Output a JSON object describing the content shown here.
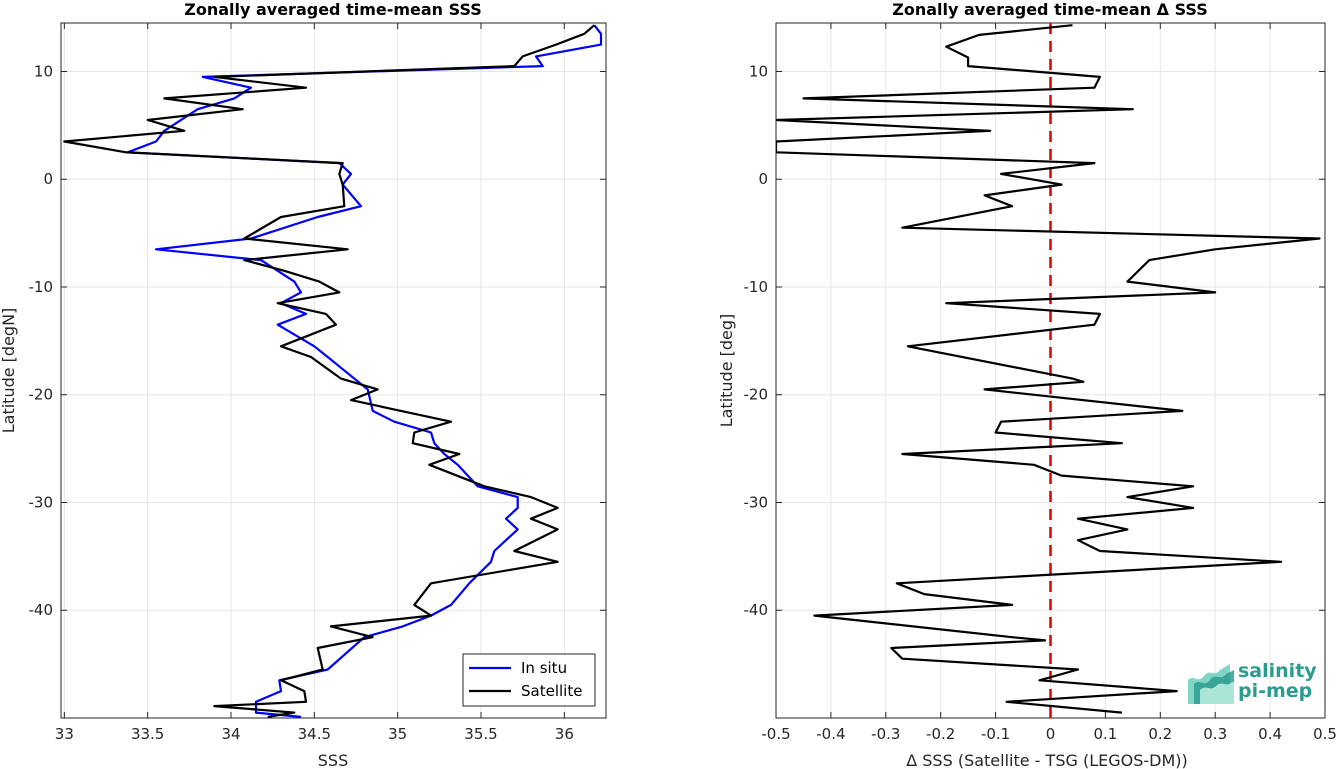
{
  "chart_data": [
    {
      "type": "line",
      "title": "Zonally averaged time-mean SSS",
      "xlabel": "SSS",
      "ylabel": "Latitude [degN]",
      "xlim": [
        32.98,
        36.25
      ],
      "ylim": [
        -50,
        14.5
      ],
      "xticks": [
        33,
        33.5,
        34,
        34.5,
        35,
        35.5,
        36
      ],
      "xtick_labels": [
        "33",
        "33.5",
        "34",
        "34.5",
        "35",
        "35.5",
        "36"
      ],
      "yticks": [
        -40,
        -30,
        -20,
        -10,
        0,
        10
      ],
      "ytick_labels": [
        "-40",
        "-30",
        "-20",
        "-10",
        "0",
        "10"
      ],
      "grid": true,
      "legend_position": "bottom-right",
      "series": [
        {
          "name": "In situ",
          "color": "#0000ff",
          "points": [
            [
              36.18,
              14.3
            ],
            [
              36.22,
              13.5
            ],
            [
              36.22,
              12.5
            ],
            [
              35.83,
              11.4
            ],
            [
              35.87,
              10.5
            ],
            [
              33.83,
              9.5
            ],
            [
              34.12,
              8.5
            ],
            [
              34.02,
              7.5
            ],
            [
              33.8,
              6.5
            ],
            [
              33.6,
              4.5
            ],
            [
              33.55,
              3.5
            ],
            [
              33.38,
              2.5
            ],
            [
              34.65,
              1.5
            ],
            [
              34.72,
              0.5
            ],
            [
              34.67,
              -0.5
            ],
            [
              34.78,
              -2.5
            ],
            [
              34.52,
              -3.5
            ],
            [
              34.12,
              -5.5
            ],
            [
              33.55,
              -6.5
            ],
            [
              34.18,
              -7.5
            ],
            [
              34.38,
              -9.5
            ],
            [
              34.42,
              -10.5
            ],
            [
              34.3,
              -11.5
            ],
            [
              34.45,
              -12.5
            ],
            [
              34.28,
              -13.5
            ],
            [
              34.5,
              -15.5
            ],
            [
              34.58,
              -16.5
            ],
            [
              34.66,
              -17.5
            ],
            [
              34.82,
              -19.5
            ],
            [
              34.85,
              -21.5
            ],
            [
              34.98,
              -22.5
            ],
            [
              35.2,
              -23.5
            ],
            [
              35.22,
              -24.5
            ],
            [
              35.28,
              -25.5
            ],
            [
              35.36,
              -26.5
            ],
            [
              35.48,
              -28.5
            ],
            [
              35.72,
              -29.5
            ],
            [
              35.72,
              -30.5
            ],
            [
              35.65,
              -31.5
            ],
            [
              35.72,
              -32.5
            ],
            [
              35.58,
              -34.5
            ],
            [
              35.56,
              -35.5
            ],
            [
              35.43,
              -37.5
            ],
            [
              35.32,
              -39.5
            ],
            [
              35.2,
              -40.5
            ],
            [
              35.03,
              -41.5
            ],
            [
              34.8,
              -42.5
            ],
            [
              34.58,
              -45.5
            ],
            [
              34.29,
              -46.5
            ],
            [
              34.3,
              -47.5
            ],
            [
              34.15,
              -48.5
            ],
            [
              34.15,
              -49.5
            ],
            [
              34.42,
              -49.9
            ]
          ]
        },
        {
          "name": "Satellite",
          "color": "#000000",
          "points": [
            [
              36.18,
              14.3
            ],
            [
              36.12,
              13.5
            ],
            [
              35.95,
              12.5
            ],
            [
              35.75,
              11.4
            ],
            [
              35.7,
              10.5
            ],
            [
              33.9,
              9.5
            ],
            [
              34.45,
              8.5
            ],
            [
              33.6,
              7.5
            ],
            [
              34.07,
              6.5
            ],
            [
              33.5,
              5.5
            ],
            [
              33.72,
              4.5
            ],
            [
              33.0,
              3.5
            ],
            [
              33.37,
              2.5
            ],
            [
              34.67,
              1.5
            ],
            [
              34.65,
              0.5
            ],
            [
              34.67,
              -0.5
            ],
            [
              34.68,
              -2.5
            ],
            [
              34.3,
              -3.5
            ],
            [
              34.08,
              -5.5
            ],
            [
              34.7,
              -6.5
            ],
            [
              34.08,
              -7.5
            ],
            [
              34.32,
              -8.5
            ],
            [
              34.53,
              -9.5
            ],
            [
              34.65,
              -10.5
            ],
            [
              34.28,
              -11.5
            ],
            [
              34.57,
              -12.5
            ],
            [
              34.63,
              -13.5
            ],
            [
              34.3,
              -15.5
            ],
            [
              34.48,
              -16.5
            ],
            [
              34.66,
              -18.5
            ],
            [
              34.88,
              -19.5
            ],
            [
              34.72,
              -20.5
            ],
            [
              35.32,
              -22.5
            ],
            [
              35.1,
              -23.5
            ],
            [
              35.09,
              -24.5
            ],
            [
              35.37,
              -25.5
            ],
            [
              35.19,
              -26.5
            ],
            [
              35.52,
              -28.5
            ],
            [
              35.8,
              -29.5
            ],
            [
              35.96,
              -30.5
            ],
            [
              35.8,
              -31.5
            ],
            [
              35.96,
              -32.5
            ],
            [
              35.7,
              -34.5
            ],
            [
              35.96,
              -35.5
            ],
            [
              35.2,
              -37.5
            ],
            [
              35.1,
              -39.5
            ],
            [
              35.2,
              -40.5
            ],
            [
              34.6,
              -41.5
            ],
            [
              34.85,
              -42.5
            ],
            [
              34.52,
              -43.5
            ],
            [
              34.55,
              -45.5
            ],
            [
              34.3,
              -46.5
            ],
            [
              34.44,
              -47.5
            ],
            [
              34.45,
              -48.5
            ],
            [
              33.9,
              -48.9
            ],
            [
              34.38,
              -49.5
            ],
            [
              34.22,
              -49.9
            ]
          ]
        }
      ]
    },
    {
      "type": "line",
      "title": "Zonally averaged time-mean Δ SSS",
      "xlabel": "Δ SSS (Satellite - TSG (LEGOS-DM))",
      "ylabel": "Latitude [deg]",
      "xlim": [
        -0.5,
        0.5
      ],
      "ylim": [
        -50,
        14.5
      ],
      "xticks": [
        -0.5,
        -0.4,
        -0.3,
        -0.2,
        -0.1,
        0,
        0.1,
        0.2,
        0.3,
        0.4,
        0.5
      ],
      "xtick_labels": [
        "-0.5",
        "-0.4",
        "-0.3",
        "-0.2",
        "-0.1",
        "0",
        "0.1",
        "0.2",
        "0.3",
        "0.4",
        "0.5"
      ],
      "yticks": [
        -40,
        -30,
        -20,
        -10,
        0,
        10
      ],
      "ytick_labels": [
        "-40",
        "-30",
        "-20",
        "-10",
        "0",
        "10"
      ],
      "grid": true,
      "reference_line": {
        "x": 0,
        "color": "#e00000",
        "style": "dashed"
      },
      "series": [
        {
          "color": "#000000",
          "points": [
            [
              0.04,
              14.3
            ],
            [
              -0.13,
              13.4
            ],
            [
              -0.19,
              12.3
            ],
            [
              -0.15,
              11.3
            ],
            [
              -0.15,
              10.5
            ],
            [
              0.09,
              9.5
            ],
            [
              0.08,
              8.5
            ],
            [
              -0.45,
              7.5
            ],
            [
              0.15,
              6.5
            ],
            [
              -0.5,
              5.5
            ],
            [
              -0.11,
              4.5
            ],
            [
              -0.5,
              3.5
            ],
            [
              -0.5,
              2.5
            ],
            [
              0.08,
              1.5
            ],
            [
              -0.09,
              0.5
            ],
            [
              0.02,
              -0.5
            ],
            [
              -0.12,
              -1.5
            ],
            [
              -0.07,
              -2.5
            ],
            [
              -0.27,
              -4.5
            ],
            [
              0.49,
              -5.5
            ],
            [
              0.3,
              -6.5
            ],
            [
              0.18,
              -7.5
            ],
            [
              0.14,
              -9.5
            ],
            [
              0.3,
              -10.5
            ],
            [
              -0.19,
              -11.5
            ],
            [
              0.09,
              -12.5
            ],
            [
              0.08,
              -13.5
            ],
            [
              -0.26,
              -15.5
            ],
            [
              0.04,
              -18.5
            ],
            [
              0.06,
              -18.8
            ],
            [
              -0.12,
              -19.5
            ],
            [
              0.24,
              -21.5
            ],
            [
              -0.09,
              -22.5
            ],
            [
              -0.1,
              -23.5
            ],
            [
              0.13,
              -24.5
            ],
            [
              -0.27,
              -25.5
            ],
            [
              -0.03,
              -26.5
            ],
            [
              0.02,
              -27.5
            ],
            [
              0.26,
              -28.5
            ],
            [
              0.14,
              -29.5
            ],
            [
              0.26,
              -30.5
            ],
            [
              0.05,
              -31.5
            ],
            [
              0.14,
              -32.5
            ],
            [
              0.05,
              -33.5
            ],
            [
              0.09,
              -34.5
            ],
            [
              0.42,
              -35.5
            ],
            [
              -0.28,
              -37.5
            ],
            [
              -0.23,
              -38.5
            ],
            [
              -0.07,
              -39.5
            ],
            [
              -0.43,
              -40.5
            ],
            [
              -0.07,
              -42.5
            ],
            [
              -0.01,
              -42.8
            ],
            [
              -0.29,
              -43.5
            ],
            [
              -0.27,
              -44.5
            ],
            [
              0.05,
              -45.5
            ],
            [
              -0.02,
              -46.5
            ],
            [
              0.23,
              -47.5
            ],
            [
              -0.08,
              -48.5
            ],
            [
              0.13,
              -49.5
            ]
          ]
        }
      ]
    }
  ],
  "logo": {
    "line1": "salinity",
    "line2": "pi-mep"
  }
}
